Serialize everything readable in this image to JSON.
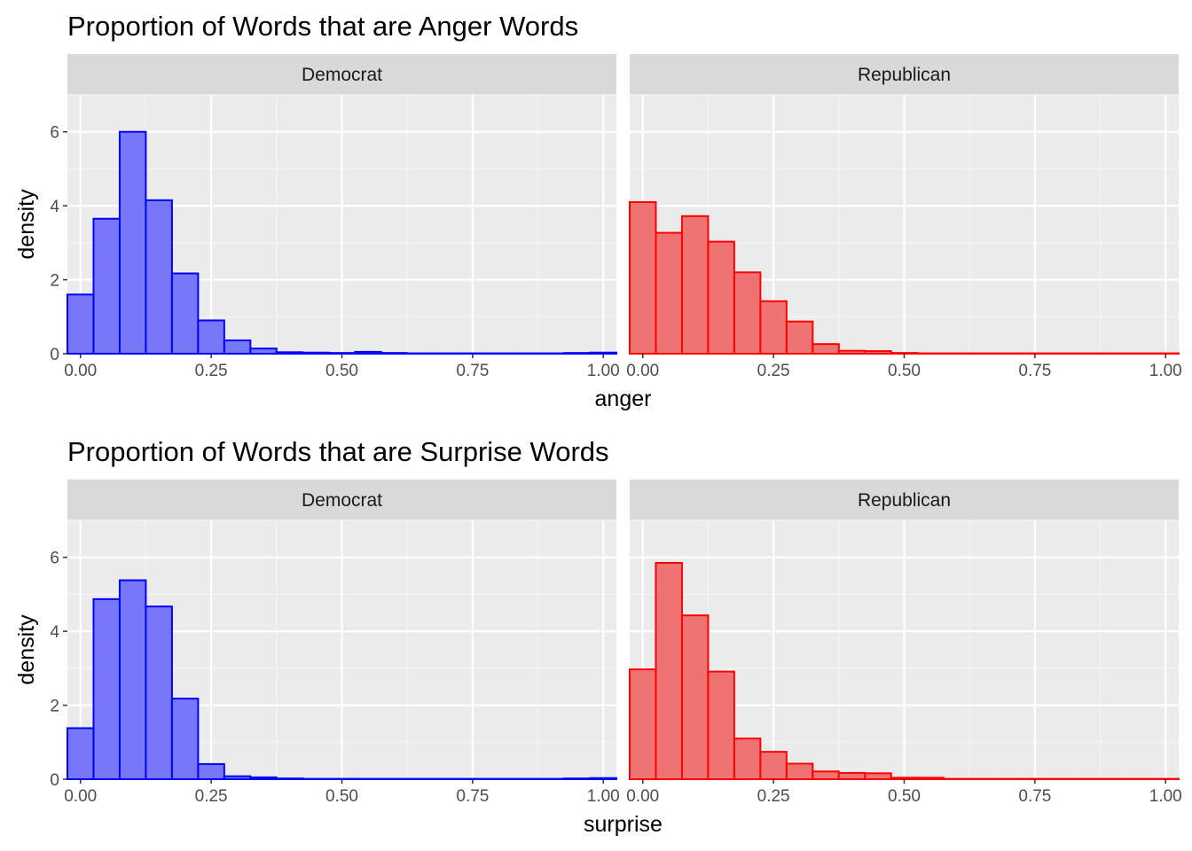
{
  "chart_data": [
    {
      "type": "bar",
      "title": "Proportion of Words that are Anger Words",
      "xlabel": "anger",
      "ylabel": "density",
      "xlim": [
        -0.025,
        1.025
      ],
      "ylim": [
        0,
        7
      ],
      "x_ticks": [
        "0.00",
        "0.25",
        "0.50",
        "0.75",
        "1.00"
      ],
      "y_ticks": [
        "0",
        "2",
        "4",
        "6"
      ],
      "bin_width": 0.05,
      "panels": [
        {
          "name": "Democrat",
          "color": "#0000ff",
          "fill": "#7777f7",
          "bins": [
            0.0,
            0.05,
            0.1,
            0.15,
            0.2,
            0.25,
            0.3,
            0.35,
            0.4,
            0.45,
            0.5,
            0.55,
            0.6,
            0.65,
            0.7,
            0.75,
            0.8,
            0.85,
            0.9,
            0.95,
            1.0
          ],
          "values": [
            1.6,
            3.65,
            6.0,
            4.15,
            2.17,
            0.9,
            0.36,
            0.14,
            0.04,
            0.03,
            0.02,
            0.05,
            0.02,
            0.01,
            0.01,
            0.01,
            0.01,
            0.01,
            0.01,
            0.02,
            0.03
          ]
        },
        {
          "name": "Republican",
          "color": "#ff0000",
          "fill": "#f07373",
          "bins": [
            0.0,
            0.05,
            0.1,
            0.15,
            0.2,
            0.25,
            0.3,
            0.35,
            0.4,
            0.45,
            0.5,
            0.55,
            0.6,
            0.65,
            0.7,
            0.75,
            0.8,
            0.85,
            0.9,
            0.95,
            1.0
          ],
          "values": [
            4.1,
            3.27,
            3.72,
            3.03,
            2.2,
            1.42,
            0.87,
            0.26,
            0.08,
            0.07,
            0.02,
            0.01,
            0.01,
            0.01,
            0.01,
            0.01,
            0.01,
            0.01,
            0.01,
            0.01,
            0.01
          ]
        }
      ]
    },
    {
      "type": "bar",
      "title": "Proportion of Words that are Surprise Words",
      "xlabel": "surprise",
      "ylabel": "density",
      "xlim": [
        -0.025,
        1.025
      ],
      "ylim": [
        0,
        7
      ],
      "x_ticks": [
        "0.00",
        "0.25",
        "0.50",
        "0.75",
        "1.00"
      ],
      "y_ticks": [
        "0",
        "2",
        "4",
        "6"
      ],
      "bin_width": 0.05,
      "panels": [
        {
          "name": "Democrat",
          "color": "#0000ff",
          "fill": "#7777f7",
          "bins": [
            0.0,
            0.05,
            0.1,
            0.15,
            0.2,
            0.25,
            0.3,
            0.35,
            0.4,
            0.45,
            0.5,
            0.55,
            0.6,
            0.65,
            0.7,
            0.75,
            0.8,
            0.85,
            0.9,
            0.95,
            1.0
          ],
          "values": [
            1.38,
            4.87,
            5.38,
            4.67,
            2.18,
            0.41,
            0.08,
            0.05,
            0.02,
            0.01,
            0.01,
            0.01,
            0.01,
            0.01,
            0.01,
            0.01,
            0.01,
            0.01,
            0.01,
            0.02,
            0.03
          ]
        },
        {
          "name": "Republican",
          "color": "#ff0000",
          "fill": "#f07373",
          "bins": [
            0.0,
            0.05,
            0.1,
            0.15,
            0.2,
            0.25,
            0.3,
            0.35,
            0.4,
            0.45,
            0.5,
            0.55,
            0.6,
            0.65,
            0.7,
            0.75,
            0.8,
            0.85,
            0.9,
            0.95,
            1.0
          ],
          "values": [
            2.97,
            5.85,
            4.43,
            2.91,
            1.1,
            0.74,
            0.42,
            0.21,
            0.17,
            0.16,
            0.04,
            0.04,
            0.01,
            0.01,
            0.01,
            0.01,
            0.01,
            0.01,
            0.01,
            0.01,
            0.01
          ]
        }
      ]
    }
  ]
}
